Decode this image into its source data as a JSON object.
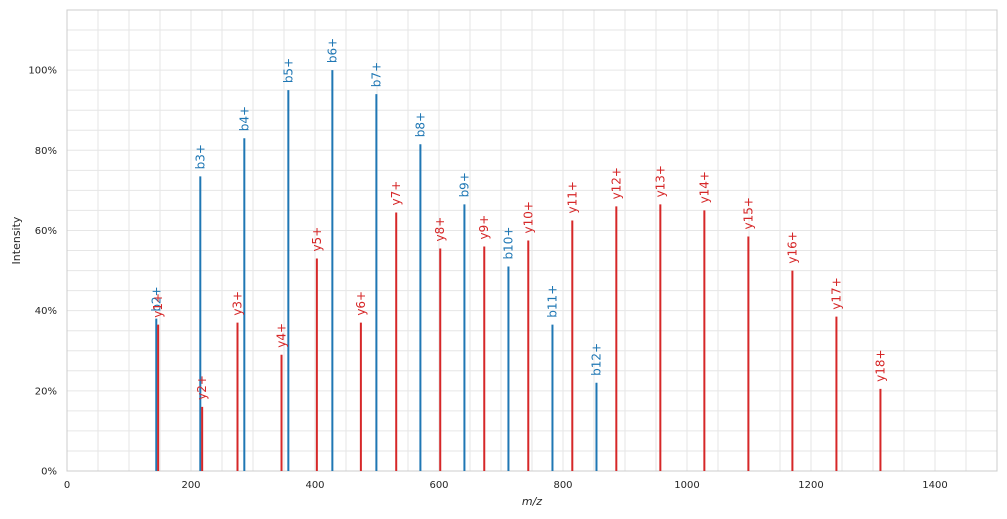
{
  "chart_data": {
    "type": "bar",
    "xlabel": "m/z",
    "ylabel": "Intensity",
    "xlim": [
      0,
      1500
    ],
    "ylim": [
      0,
      1.15
    ],
    "x_ticks": [
      "0",
      "200",
      "400",
      "600",
      "800",
      "1000",
      "1200",
      "1400"
    ],
    "x_tick_values": [
      0,
      200,
      400,
      600,
      800,
      1000,
      1200,
      1400
    ],
    "y_ticks": [
      "0%",
      "20%",
      "40%",
      "60%",
      "80%",
      "100%"
    ],
    "y_tick_values": [
      0,
      0.2,
      0.4,
      0.6,
      0.8,
      1.0
    ],
    "grid": true,
    "colors": {
      "b": "#1f77b4",
      "y": "#d62728",
      "grid": "#e6e6e6",
      "frame": "#cccccc"
    },
    "series": [
      {
        "ion_type": "b",
        "peaks": [
          {
            "label": "b2+",
            "mz": 144,
            "intensity": 0.38
          },
          {
            "label": "b3+",
            "mz": 215,
            "intensity": 0.735
          },
          {
            "label": "b4+",
            "mz": 286,
            "intensity": 0.83
          },
          {
            "label": "b5+",
            "mz": 357,
            "intensity": 0.95
          },
          {
            "label": "b6+",
            "mz": 428,
            "intensity": 1.0
          },
          {
            "label": "b7+",
            "mz": 499,
            "intensity": 0.94
          },
          {
            "label": "b8+",
            "mz": 570,
            "intensity": 0.815
          },
          {
            "label": "b9+",
            "mz": 641,
            "intensity": 0.665
          },
          {
            "label": "b10+",
            "mz": 712,
            "intensity": 0.51
          },
          {
            "label": "b11+",
            "mz": 783,
            "intensity": 0.365
          },
          {
            "label": "b12+",
            "mz": 854,
            "intensity": 0.22
          }
        ]
      },
      {
        "ion_type": "y",
        "peaks": [
          {
            "label": "y1+",
            "mz": 147,
            "intensity": 0.365
          },
          {
            "label": "y2+",
            "mz": 218,
            "intensity": 0.16
          },
          {
            "label": "y3+",
            "mz": 275,
            "intensity": 0.37
          },
          {
            "label": "y4+",
            "mz": 346,
            "intensity": 0.29
          },
          {
            "label": "y5+",
            "mz": 403,
            "intensity": 0.53
          },
          {
            "label": "y6+",
            "mz": 474,
            "intensity": 0.37
          },
          {
            "label": "y7+",
            "mz": 531,
            "intensity": 0.645
          },
          {
            "label": "y8+",
            "mz": 602,
            "intensity": 0.555
          },
          {
            "label": "y9+",
            "mz": 673,
            "intensity": 0.56
          },
          {
            "label": "y10+",
            "mz": 744,
            "intensity": 0.575
          },
          {
            "label": "y11+",
            "mz": 815,
            "intensity": 0.625
          },
          {
            "label": "y12+",
            "mz": 886,
            "intensity": 0.66
          },
          {
            "label": "y13+",
            "mz": 957,
            "intensity": 0.665
          },
          {
            "label": "y14+",
            "mz": 1028,
            "intensity": 0.65
          },
          {
            "label": "y15+",
            "mz": 1099,
            "intensity": 0.585
          },
          {
            "label": "y16+",
            "mz": 1170,
            "intensity": 0.5
          },
          {
            "label": "y17+",
            "mz": 1241,
            "intensity": 0.385
          },
          {
            "label": "y18+",
            "mz": 1312,
            "intensity": 0.205
          }
        ]
      }
    ]
  }
}
